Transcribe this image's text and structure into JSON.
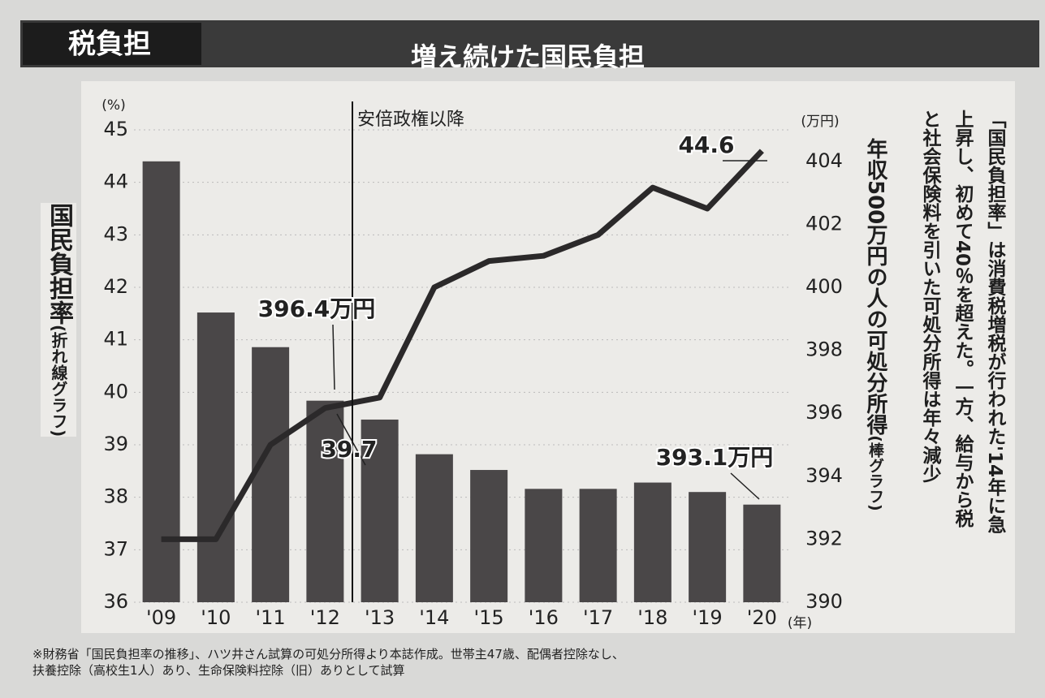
{
  "header": {
    "tag": "税負担",
    "title": "増え続けた国民負担"
  },
  "chart_data": {
    "type": "combo",
    "categories": [
      "'09",
      "'10",
      "'11",
      "'12",
      "'13",
      "'14",
      "'15",
      "'16",
      "'17",
      "'18",
      "'19",
      "'20"
    ],
    "x_unit": "(年)",
    "y_unit": "(%)",
    "y_label": "国民負担率",
    "y_label_note": "(折れ線グラフ)",
    "y2_unit": "(万円)",
    "y2_label": "年収500万円の人の可処分所得",
    "y2_label_note": "(棒グラフ)",
    "ylim": [
      36,
      45
    ],
    "yticks": [
      36,
      37,
      38,
      39,
      40,
      41,
      42,
      43,
      44,
      45
    ],
    "y2lim": [
      390,
      405
    ],
    "y2ticks": [
      390,
      392,
      394,
      396,
      398,
      400,
      402,
      404
    ],
    "grid": true,
    "series": [
      {
        "name": "年収500万円の人の可処分所得",
        "type": "bar",
        "axis": "y2",
        "color": "#4a4748",
        "values": [
          404.0,
          399.2,
          398.1,
          396.4,
          395.8,
          394.7,
          394.2,
          393.6,
          393.6,
          393.8,
          393.5,
          393.1
        ],
        "value_labels": [
          null,
          null,
          null,
          "396.4万円",
          null,
          null,
          null,
          null,
          null,
          null,
          null,
          "393.1万円"
        ]
      },
      {
        "name": "国民負担率",
        "type": "line",
        "color": "#2b292a",
        "values": [
          37.2,
          37.2,
          39.0,
          39.7,
          39.9,
          42.0,
          42.5,
          42.6,
          43.0,
          43.9,
          43.5,
          44.6
        ],
        "value_labels": [
          null,
          null,
          null,
          "39.7",
          null,
          null,
          null,
          null,
          null,
          null,
          null,
          "44.6"
        ]
      }
    ],
    "annotation": {
      "text": "安倍政権以降",
      "after_category": 3
    }
  },
  "side_note": [
    "「国民負担率」は消費税増税が行われた'14年に急",
    "上昇し、初めて40％を超えた。一方、給与から税",
    "と社会保険料を引いた可処分所得は年々減少"
  ],
  "footnote": [
    "※財務省「国民負担率の推移」、ハツ井さん試算の可処分所得より本誌作成。世帯主47歳、配偶者控除なし、",
    "扶養控除（高校生1人）あり、生命保険料控除（旧）ありとして試算"
  ]
}
